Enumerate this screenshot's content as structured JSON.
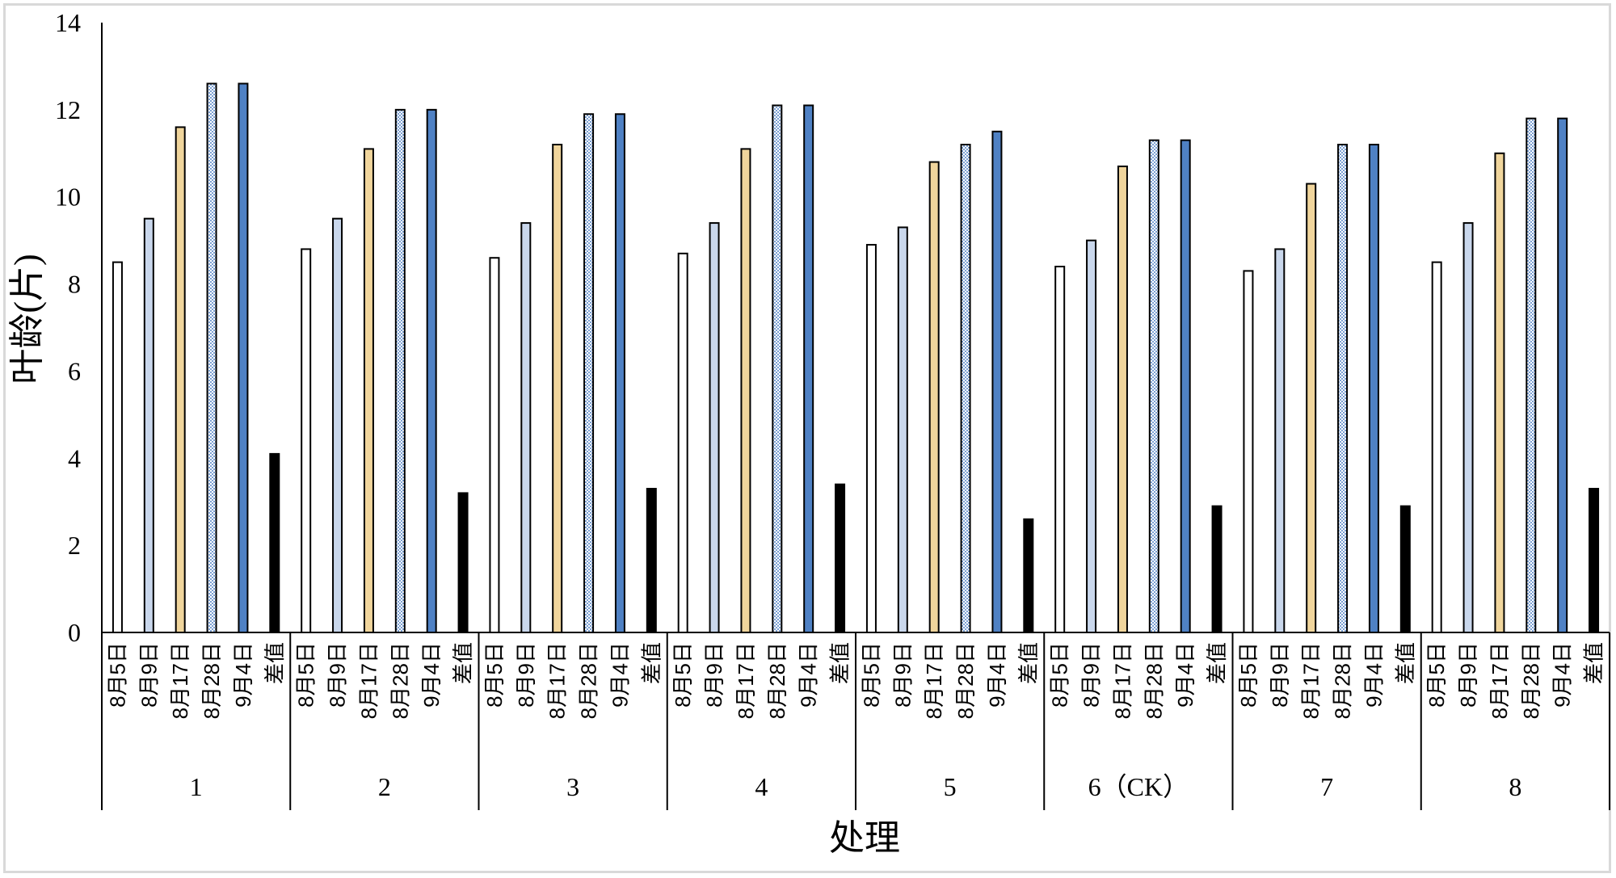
{
  "chart_data": {
    "type": "bar",
    "title": "",
    "xlabel": "处理",
    "ylabel": "叶龄(片)",
    "ylim": [
      0,
      14
    ],
    "yticks": [
      "0",
      "2",
      "4",
      "6",
      "8",
      "10",
      "12",
      "14"
    ],
    "categories": [
      "1",
      "2",
      "3",
      "4",
      "5",
      "6（CK）",
      "7",
      "8"
    ],
    "sub_categories": [
      "8月5日",
      "8月9日",
      "8月17日",
      "8月28日",
      "9月4日",
      "差值"
    ],
    "series": [
      {
        "name": "8月5日",
        "color": "#ffffff",
        "values": [
          8.5,
          8.8,
          8.6,
          8.7,
          8.9,
          8.4,
          8.3,
          8.5
        ]
      },
      {
        "name": "8月9日",
        "color": "#c9d7ec",
        "values": [
          9.5,
          9.5,
          9.4,
          9.4,
          9.3,
          9.0,
          8.8,
          9.4
        ]
      },
      {
        "name": "8月17日",
        "color": "#f0d59c",
        "values": [
          11.6,
          11.1,
          11.2,
          11.1,
          10.8,
          10.7,
          10.3,
          11.0
        ]
      },
      {
        "name": "8月28日",
        "color": "#8ea9d8",
        "pattern": "dots",
        "values": [
          12.6,
          12.0,
          11.9,
          12.1,
          11.2,
          11.3,
          11.2,
          11.8
        ]
      },
      {
        "name": "9月4日",
        "color": "#4f81c4",
        "values": [
          12.6,
          12.0,
          11.9,
          12.1,
          11.5,
          11.3,
          11.2,
          11.8
        ]
      },
      {
        "name": "差值",
        "color": "#000000",
        "values": [
          4.1,
          3.2,
          3.3,
          3.4,
          2.6,
          2.9,
          2.9,
          3.3
        ]
      }
    ],
    "grid": false,
    "legend": "none"
  }
}
